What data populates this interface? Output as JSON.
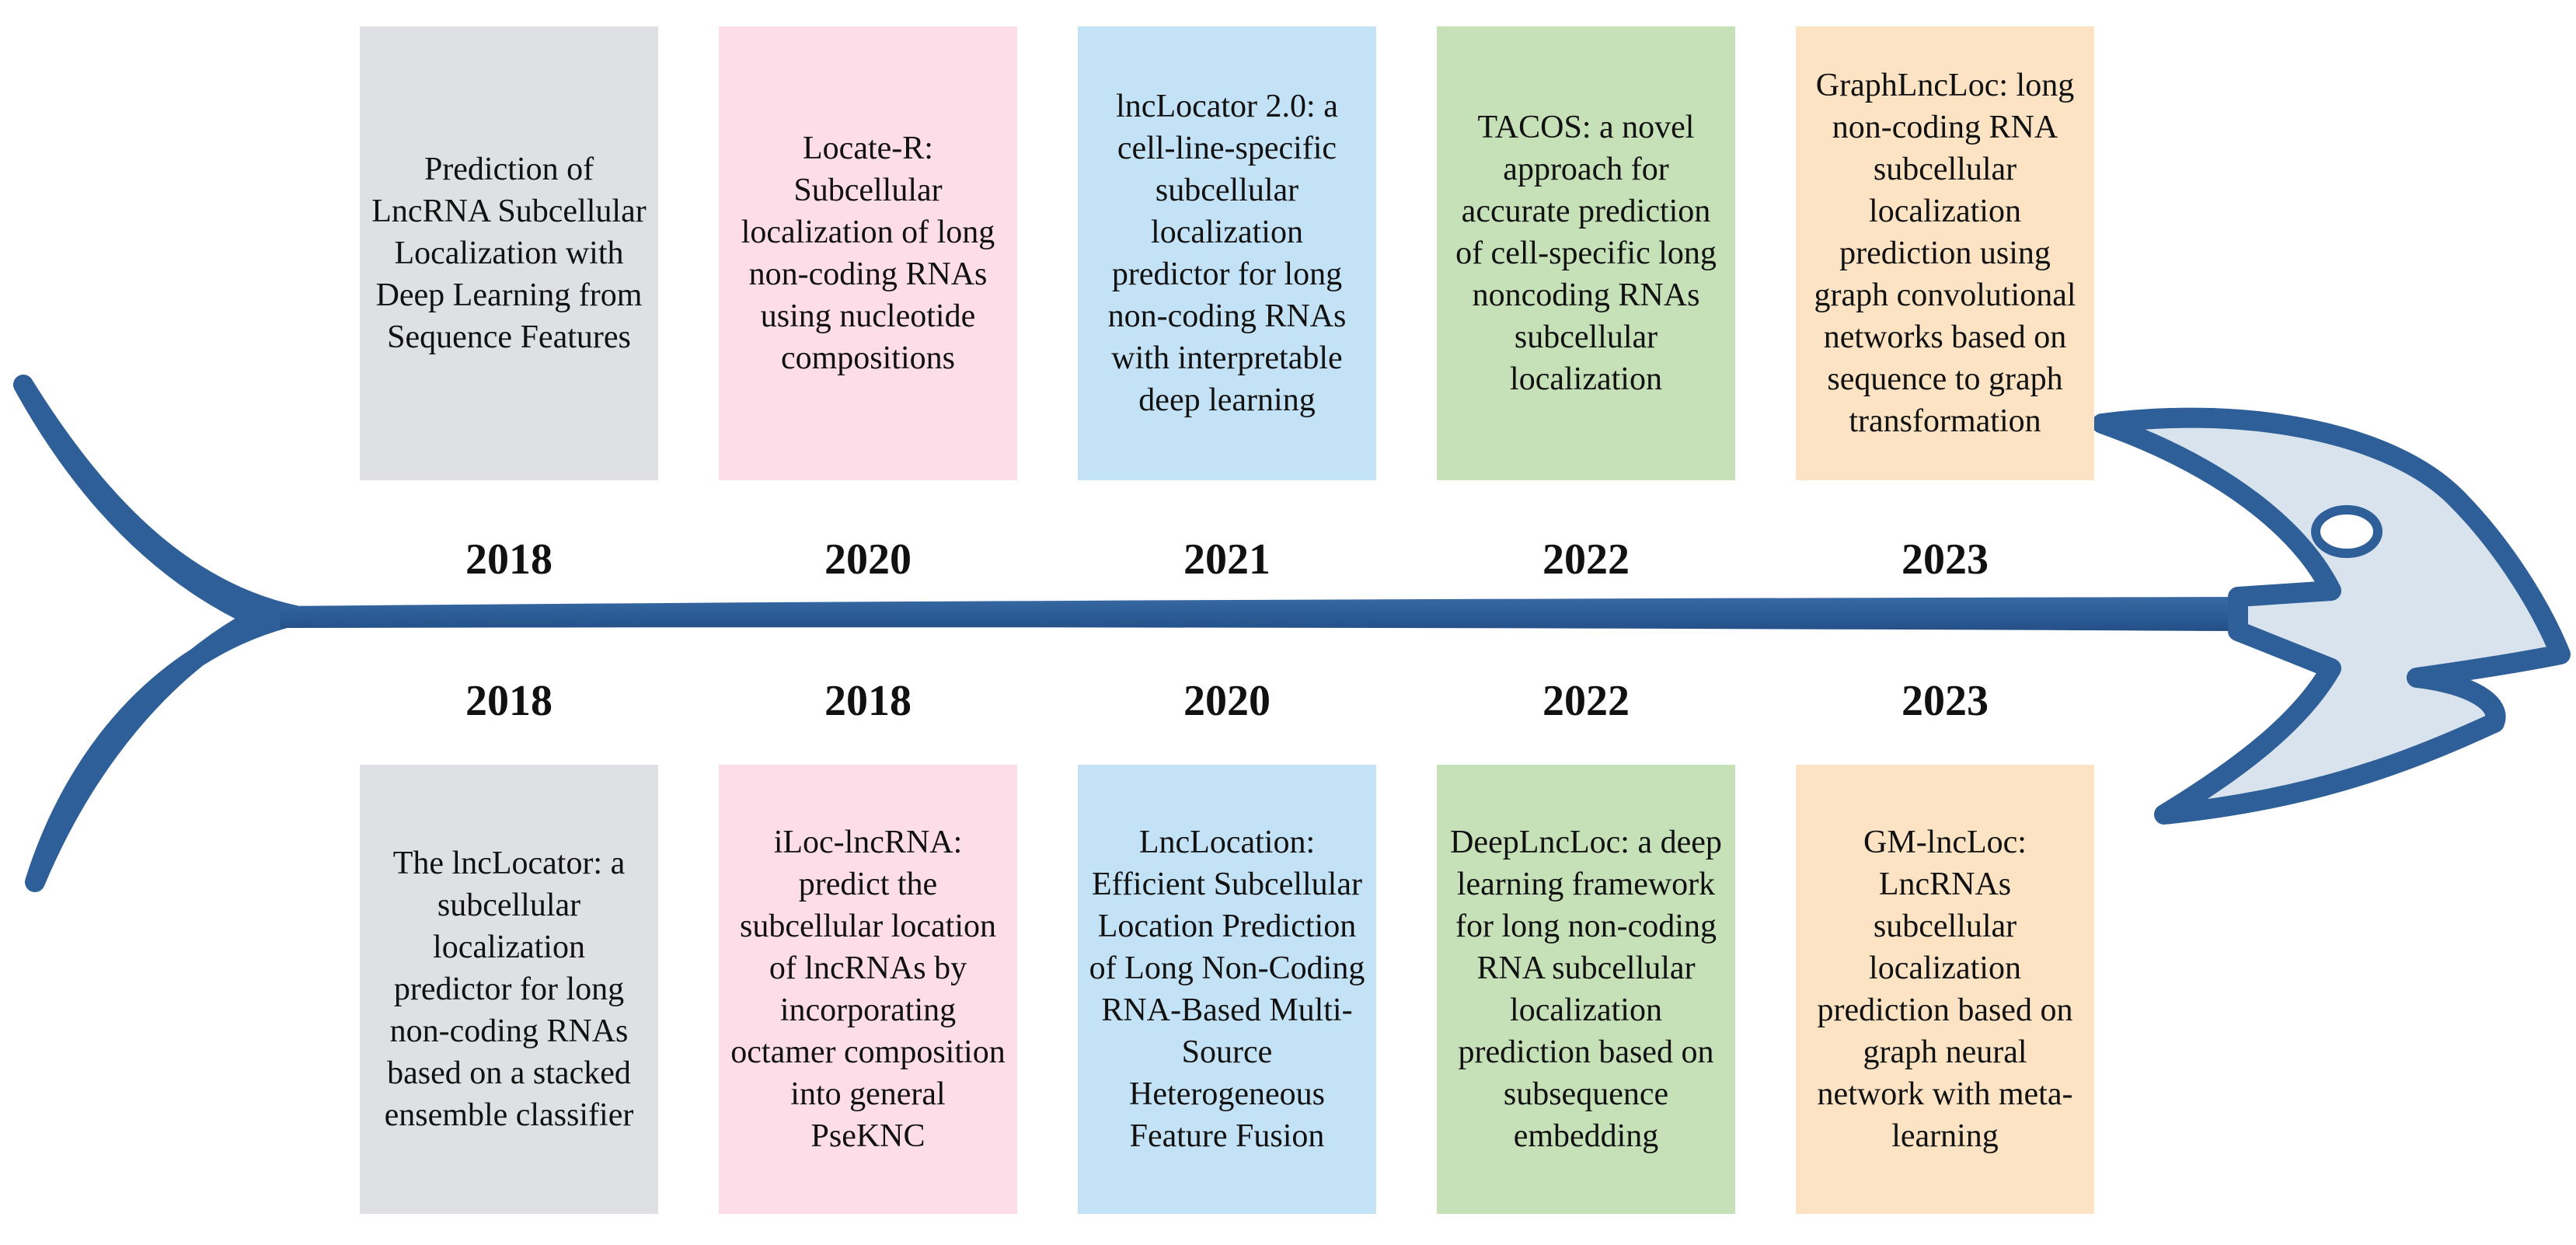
{
  "colors": {
    "fish_stroke": "#2f5f98",
    "fish_fill": "#d8e3ee",
    "card_fills": [
      "#dfe0e3",
      "#fddde8",
      "#c4e2f5",
      "#c6e0b8",
      "#fbe3c4"
    ]
  },
  "top_row": [
    {
      "year": "2018",
      "title": "Prediction of LncRNA Subcellular Localization with Deep Learning from Sequence Features"
    },
    {
      "year": "2020",
      "title": "Locate-R: Subcellular localization of long non-coding RNAs using nucleotide compositions"
    },
    {
      "year": "2021",
      "title": "lncLocator 2.0: a cell-line-specific subcellular localization predictor for long non-coding RNAs with interpretable deep learning"
    },
    {
      "year": "2022",
      "title": "TACOS: a novel approach for accurate prediction of cell-specific long noncoding RNAs subcellular localization"
    },
    {
      "year": "2023",
      "title": "GraphLncLoc: long non-coding RNA subcellular localization prediction using graph convolutional networks based on sequence to graph transformation"
    }
  ],
  "bottom_row": [
    {
      "year": "2018",
      "title": "The lncLocator: a subcellular localization predictor for long non-coding RNAs based on a stacked ensemble classifier"
    },
    {
      "year": "2018",
      "title": "iLoc-lncRNA: predict the subcellular location of lncRNAs by incorporating octamer composition into general PseKNC"
    },
    {
      "year": "2020",
      "title": "LncLocation: Efficient Subcellular Location Prediction of Long Non-Coding RNA-Based Multi-Source Heterogeneous Feature Fusion"
    },
    {
      "year": "2022",
      "title": "DeepLncLoc: a deep learning framework for long non-coding RNA subcellular localization prediction based on subsequence embedding"
    },
    {
      "year": "2023",
      "title": "GM-lncLoc: LncRNAs subcellular localization prediction based on graph neural network with meta-learning"
    }
  ]
}
